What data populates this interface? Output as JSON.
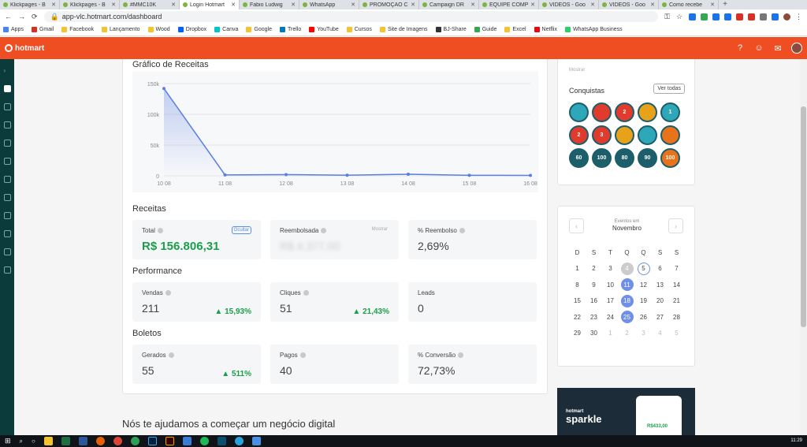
{
  "browser": {
    "tabs": [
      {
        "label": "Klickpages - B",
        "active": false
      },
      {
        "label": "Klickpages - B",
        "active": false
      },
      {
        "label": "#MMC10K",
        "active": false
      },
      {
        "label": "Login Hotmart",
        "active": true
      },
      {
        "label": "Fabio Ludwig",
        "active": false
      },
      {
        "label": "WhatsApp",
        "active": false
      },
      {
        "label": "PROMOÇÃO C",
        "active": false
      },
      {
        "label": "Campaign DR",
        "active": false
      },
      {
        "label": "EQUIPE COMP",
        "active": false
      },
      {
        "label": "VIDEOS - Goo",
        "active": false
      },
      {
        "label": "VIDEOS - Goo",
        "active": false
      },
      {
        "label": "Como recebe",
        "active": false
      }
    ],
    "url": "app-vlc.hotmart.com/dashboard",
    "apps_label": "Apps",
    "bookmarks": [
      "Gmail",
      "Facebook",
      "Lançamento",
      "Wood",
      "Dropbox",
      "Canva",
      "Google",
      "Trello",
      "YouTube",
      "Cursos",
      "Site de Imagens",
      "BJ-Share",
      "Guide",
      "Excel",
      "Netflix",
      "WhatsApp Business"
    ]
  },
  "header": {
    "logo": "hotmart"
  },
  "chart": {
    "title": "Gráfico de Receitas",
    "chart_data": {
      "type": "area",
      "title": "Gráfico de Receitas",
      "x": [
        "10 08",
        "11 08",
        "12 08",
        "13 08",
        "14 08",
        "15 08",
        "16 08"
      ],
      "series": [
        {
          "values": [
            142000,
            1500,
            2000,
            1000,
            2500,
            800,
            700
          ]
        }
      ],
      "ylim": [
        0,
        150000
      ],
      "yticks": [
        0,
        50000,
        100000,
        150000
      ],
      "ytick_labels": [
        "0",
        "50k",
        "100k",
        "150k"
      ],
      "grid": true,
      "color": "#5b7fe0"
    }
  },
  "receitas": {
    "title": "Receitas",
    "total": {
      "label": "Total",
      "value": "R$ 156.806,31",
      "hide": "Ocultar"
    },
    "reembolsada": {
      "label": "Reembolsada",
      "value": "R$ 4.377,00",
      "hide": "Mostrar"
    },
    "pct_reembolso": {
      "label": "% Reembolso",
      "value": "2,69%"
    }
  },
  "performance": {
    "title": "Performance",
    "vendas": {
      "label": "Vendas",
      "value": "211",
      "trend": "15,93%"
    },
    "cliques": {
      "label": "Cliques",
      "value": "51",
      "trend": "21,43%"
    },
    "leads": {
      "label": "Leads",
      "value": "0"
    }
  },
  "boletos": {
    "title": "Boletos",
    "gerados": {
      "label": "Gerados",
      "value": "55",
      "trend": "511%"
    },
    "pagos": {
      "label": "Pagos",
      "value": "40"
    },
    "conversao": {
      "label": "% Conversão",
      "value": "72,73%"
    }
  },
  "help_title": "Nós te ajudamos a começar um negócio digital",
  "conquistas": {
    "mostrar": "Mostrar",
    "title": "Conquistas",
    "ver_todas": "Ver todas",
    "badges": [
      {
        "text": "",
        "color": "#2ea7b8"
      },
      {
        "text": "",
        "color": "#e03b2c"
      },
      {
        "text": "2",
        "color": "#e03b2c"
      },
      {
        "text": "",
        "color": "#e8a21a"
      },
      {
        "text": "1",
        "color": "#2ea7b8"
      },
      {
        "text": "2",
        "color": "#e03b2c"
      },
      {
        "text": "3",
        "color": "#e03b2c"
      },
      {
        "text": "",
        "color": "#e8a21a"
      },
      {
        "text": "",
        "color": "#2ea7b8"
      },
      {
        "text": "",
        "color": "#e8731a"
      },
      {
        "text": "60",
        "color": "#1d5e6b"
      },
      {
        "text": "100",
        "color": "#1d5e6b"
      },
      {
        "text": "80",
        "color": "#1d5e6b"
      },
      {
        "text": "90",
        "color": "#1d5e6b"
      },
      {
        "text": "100",
        "color": "#e8731a"
      }
    ]
  },
  "calendar": {
    "label": "Eventos em",
    "month": "Novembro",
    "weekdays": [
      "D",
      "S",
      "T",
      "Q",
      "Q",
      "S",
      "S"
    ],
    "weeks": [
      [
        {
          "d": "1"
        },
        {
          "d": "2"
        },
        {
          "d": "3"
        },
        {
          "d": "4",
          "s": "today"
        },
        {
          "d": "5",
          "s": "ring"
        },
        {
          "d": "6"
        },
        {
          "d": "7"
        }
      ],
      [
        {
          "d": "8"
        },
        {
          "d": "9"
        },
        {
          "d": "10"
        },
        {
          "d": "11",
          "s": "sel"
        },
        {
          "d": "12"
        },
        {
          "d": "13"
        },
        {
          "d": "14"
        }
      ],
      [
        {
          "d": "15"
        },
        {
          "d": "16"
        },
        {
          "d": "17"
        },
        {
          "d": "18",
          "s": "sel"
        },
        {
          "d": "19"
        },
        {
          "d": "20"
        },
        {
          "d": "21"
        }
      ],
      [
        {
          "d": "22"
        },
        {
          "d": "23"
        },
        {
          "d": "24"
        },
        {
          "d": "25",
          "s": "sel"
        },
        {
          "d": "26"
        },
        {
          "d": "27"
        },
        {
          "d": "28"
        }
      ],
      [
        {
          "d": "29"
        },
        {
          "d": "30"
        },
        {
          "d": "1",
          "s": "muted"
        },
        {
          "d": "2",
          "s": "muted"
        },
        {
          "d": "3",
          "s": "muted"
        },
        {
          "d": "4",
          "s": "muted"
        },
        {
          "d": "5",
          "s": "muted"
        }
      ]
    ]
  },
  "ad": {
    "small": "hotmart",
    "big": "sparkle",
    "price": "R$433,00"
  },
  "taskbar": {
    "time": "11:29"
  }
}
